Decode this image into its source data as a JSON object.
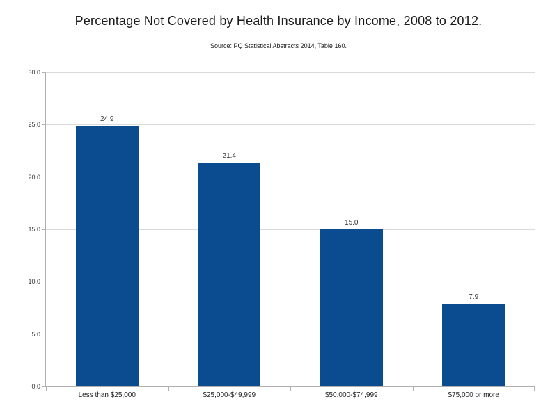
{
  "header": {
    "title": "Percentage Not Covered by Health Insurance by Income, 2008 to 2012.",
    "source_note": "Source: PQ Statistical Abstracts 2014, Table 160."
  },
  "chart_data": {
    "type": "bar",
    "title": "Percentage Not Covered by Health Insurance by Income, 2008 to 2012.",
    "source_note": "Source: PQ Statistical Abstracts 2014, Table 160.",
    "categories": [
      "Less than $25,000",
      "$25,000-$49,999",
      "$50,000-$74,999",
      "$75,000 or more"
    ],
    "values": [
      24.9,
      21.4,
      15.0,
      7.9
    ],
    "value_labels": [
      "24.9",
      "21.4",
      "15.0",
      "7.9"
    ],
    "xlabel": "",
    "ylabel": "",
    "ylim": [
      0,
      30
    ],
    "ytick_interval": 5,
    "ytick_labels": [
      "0.0",
      "5.0",
      "10.0",
      "15.0",
      "20.0",
      "25.0",
      "30.0"
    ],
    "grid": "horizontal",
    "legend": "none",
    "colors": {
      "bar": "#0b4b8f",
      "gridline": "#dadada",
      "axis": "#b0b0b0",
      "plot_right_border": "#c8c8c8",
      "label_text": "#333333"
    }
  }
}
